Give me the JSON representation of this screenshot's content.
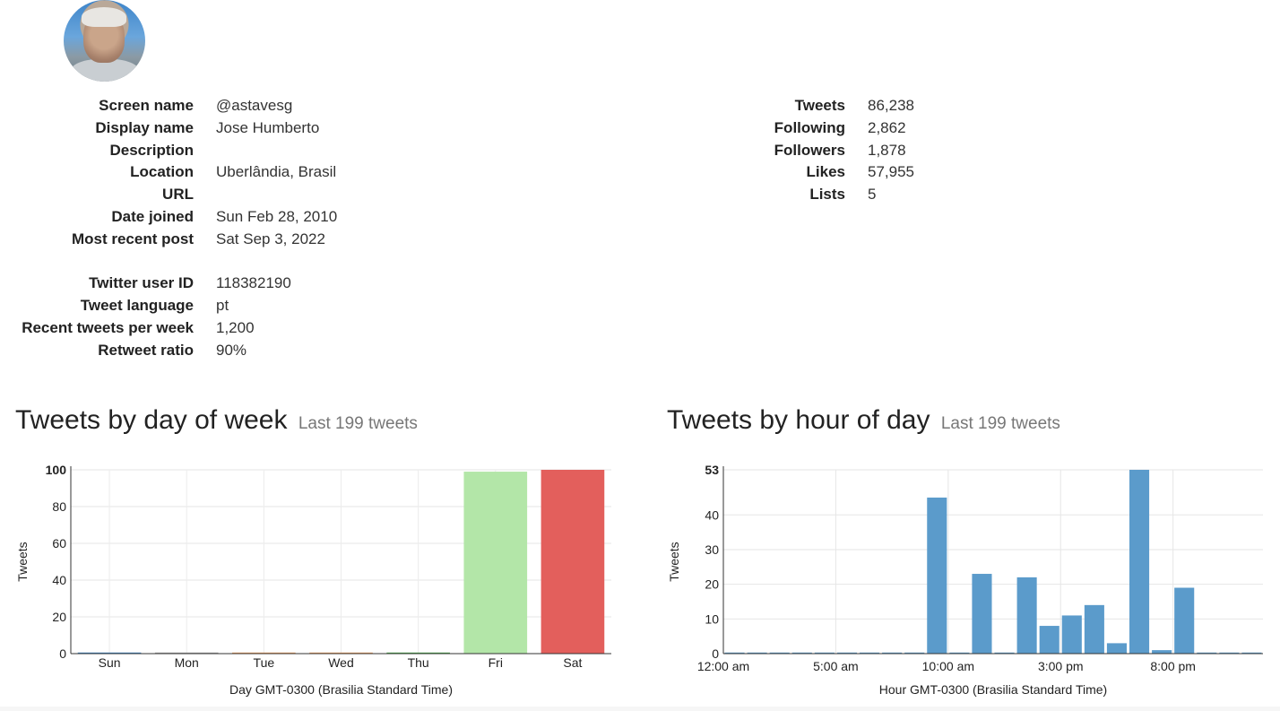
{
  "profile": {
    "left": [
      {
        "label": "Screen name",
        "value": "@astavesg"
      },
      {
        "label": "Display name",
        "value": "Jose Humberto"
      },
      {
        "label": "Description",
        "value": ""
      },
      {
        "label": "Location",
        "value": "Uberlândia, Brasil"
      },
      {
        "label": "URL",
        "value": ""
      },
      {
        "label": "Date joined",
        "value": "Sun Feb 28, 2010"
      },
      {
        "label": "Most recent post",
        "value": "Sat Sep 3, 2022"
      }
    ],
    "left2": [
      {
        "label": "Twitter user ID",
        "value": "118382190"
      },
      {
        "label": "Tweet language",
        "value": "pt"
      },
      {
        "label": "Recent tweets per week",
        "value": "1,200"
      },
      {
        "label": "Retweet ratio",
        "value": "90%"
      }
    ],
    "right": [
      {
        "label": "Tweets",
        "value": "86,238"
      },
      {
        "label": "Following",
        "value": "2,862"
      },
      {
        "label": "Followers",
        "value": "1,878"
      },
      {
        "label": "Likes",
        "value": "57,955"
      },
      {
        "label": "Lists",
        "value": "5"
      }
    ]
  },
  "headings": {
    "day_title": "Tweets by day of week",
    "day_sub": "Last 199 tweets",
    "hour_title": "Tweets by hour of day",
    "hour_sub": "Last 199 tweets"
  },
  "chart_data": [
    {
      "type": "bar",
      "categories": [
        "Sun",
        "Mon",
        "Tue",
        "Wed",
        "Thu",
        "Fri",
        "Sat"
      ],
      "values": [
        0,
        0,
        0,
        0,
        0,
        99,
        100
      ],
      "colors": [
        "#3b86c6",
        "#a0a0a0",
        "#f0a060",
        "#f0a060",
        "#4aa84a",
        "#b3e6a8",
        "#e35f5c"
      ],
      "title": "",
      "xlabel": "Day GMT-0300 (Brasilia Standard Time)",
      "ylabel": "Tweets",
      "ylim": [
        0,
        100
      ],
      "yticks": [
        0,
        20,
        40,
        60,
        80,
        100
      ],
      "grid": true
    },
    {
      "type": "bar",
      "categories": [
        "12:00 am",
        "1:00 am",
        "2:00 am",
        "3:00 am",
        "4:00 am",
        "5:00 am",
        "6:00 am",
        "7:00 am",
        "8:00 am",
        "9:00 am",
        "10:00 am",
        "11:00 am",
        "12:00 pm",
        "1:00 pm",
        "2:00 pm",
        "3:00 pm",
        "4:00 pm",
        "5:00 pm",
        "6:00 pm",
        "7:00 pm",
        "8:00 pm",
        "9:00 pm",
        "10:00 pm",
        "11:00 pm"
      ],
      "values": [
        0,
        0,
        0,
        0,
        0,
        0,
        0,
        0,
        0,
        45,
        0,
        23,
        0,
        22,
        8,
        11,
        14,
        3,
        53,
        1,
        19,
        0,
        0,
        0
      ],
      "x_tick_labels": [
        "12:00 am",
        "5:00 am",
        "10:00 am",
        "3:00 pm",
        "8:00 pm"
      ],
      "color": "#5b9bcb",
      "title": "",
      "xlabel": "Hour GMT-0300 (Brasilia Standard Time)",
      "ylabel": "Tweets",
      "ylim": [
        0,
        53
      ],
      "yticks": [
        0,
        10,
        20,
        30,
        40,
        53
      ],
      "grid": true
    }
  ]
}
